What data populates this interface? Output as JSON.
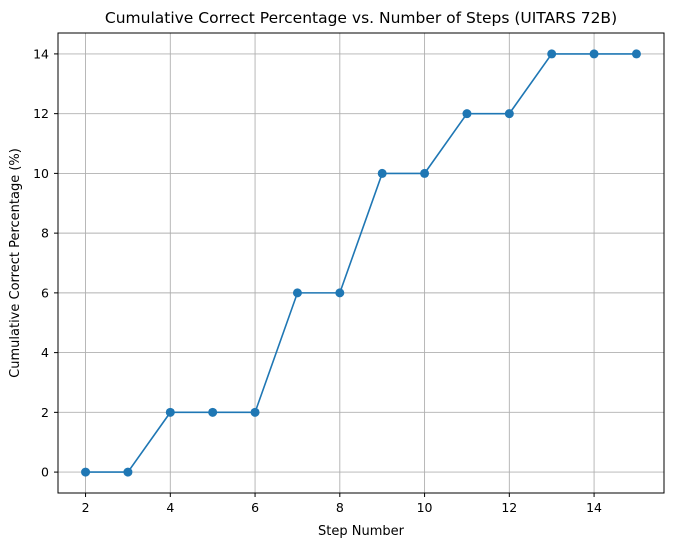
{
  "chart_data": {
    "type": "line",
    "title": "Cumulative Correct Percentage vs. Number of Steps (UITARS 72B)",
    "xlabel": "Step Number",
    "ylabel": "Cumulative Correct Percentage (%)",
    "x": [
      2,
      3,
      4,
      5,
      6,
      7,
      8,
      9,
      10,
      11,
      12,
      13,
      14,
      15
    ],
    "series": [
      {
        "values": [
          0,
          0,
          2,
          2,
          2,
          6,
          6,
          10,
          10,
          12,
          12,
          14,
          14,
          14
        ],
        "color": "#1f77b4",
        "marker": "circle"
      }
    ],
    "xticks": [
      2,
      4,
      6,
      8,
      10,
      12,
      14
    ],
    "yticks": [
      0,
      2,
      4,
      6,
      8,
      10,
      12,
      14
    ],
    "xlim": [
      1.35,
      15.65
    ],
    "ylim": [
      -0.7,
      14.7
    ],
    "grid": true,
    "legend": "none"
  }
}
